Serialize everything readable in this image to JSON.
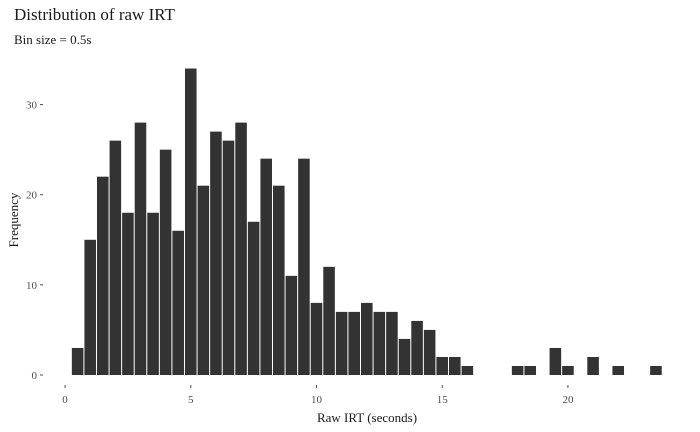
{
  "chart_data": {
    "type": "bar",
    "title": "Distribution of raw IRT",
    "subtitle": "Bin size = 0.5s",
    "xlabel": "Raw IRT (seconds)",
    "ylabel": "Frequency",
    "bin_width": 0.5,
    "xlim": [
      -0.4,
      23.9
    ],
    "ylim": [
      0,
      35.5
    ],
    "x_ticks": [
      0,
      5,
      10,
      15,
      20
    ],
    "y_ticks": [
      0,
      10,
      20,
      30
    ],
    "bar_color": "#333333",
    "grid": false,
    "bins": [
      {
        "x": 0.5,
        "count": 3
      },
      {
        "x": 1.0,
        "count": 15
      },
      {
        "x": 1.5,
        "count": 22
      },
      {
        "x": 2.0,
        "count": 26
      },
      {
        "x": 2.5,
        "count": 18
      },
      {
        "x": 3.0,
        "count": 28
      },
      {
        "x": 3.5,
        "count": 18
      },
      {
        "x": 4.0,
        "count": 25
      },
      {
        "x": 4.5,
        "count": 16
      },
      {
        "x": 5.0,
        "count": 34
      },
      {
        "x": 5.5,
        "count": 21
      },
      {
        "x": 6.0,
        "count": 27
      },
      {
        "x": 6.5,
        "count": 26
      },
      {
        "x": 7.0,
        "count": 28
      },
      {
        "x": 7.5,
        "count": 17
      },
      {
        "x": 8.0,
        "count": 24
      },
      {
        "x": 8.5,
        "count": 21
      },
      {
        "x": 9.0,
        "count": 11
      },
      {
        "x": 9.5,
        "count": 24
      },
      {
        "x": 10.0,
        "count": 8
      },
      {
        "x": 10.5,
        "count": 12
      },
      {
        "x": 11.0,
        "count": 7
      },
      {
        "x": 11.5,
        "count": 7
      },
      {
        "x": 12.0,
        "count": 8
      },
      {
        "x": 12.5,
        "count": 7
      },
      {
        "x": 13.0,
        "count": 7
      },
      {
        "x": 13.5,
        "count": 4
      },
      {
        "x": 14.0,
        "count": 6
      },
      {
        "x": 14.5,
        "count": 5
      },
      {
        "x": 15.0,
        "count": 2
      },
      {
        "x": 15.5,
        "count": 2
      },
      {
        "x": 16.0,
        "count": 1
      },
      {
        "x": 18.0,
        "count": 1
      },
      {
        "x": 18.5,
        "count": 1
      },
      {
        "x": 19.5,
        "count": 3
      },
      {
        "x": 20.0,
        "count": 1
      },
      {
        "x": 21.0,
        "count": 2
      },
      {
        "x": 22.0,
        "count": 1
      },
      {
        "x": 23.5,
        "count": 1
      }
    ]
  }
}
